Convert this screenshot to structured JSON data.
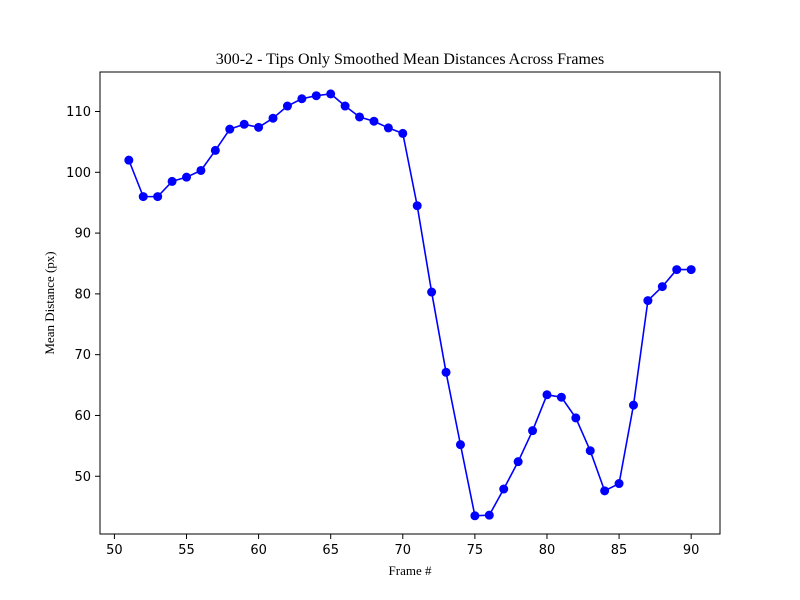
{
  "chart_data": {
    "type": "line",
    "title": "300-2 - Tips Only Smoothed Mean Distances Across Frames",
    "xlabel": "Frame #",
    "ylabel": "Mean Distance (px)",
    "xlim": [
      49,
      92
    ],
    "ylim": [
      40.5,
      116.5
    ],
    "xticks": [
      50,
      55,
      60,
      65,
      70,
      75,
      80,
      85,
      90
    ],
    "yticks": [
      50,
      60,
      70,
      80,
      90,
      100,
      110
    ],
    "grid": false,
    "legend": "none",
    "series": [
      {
        "color": "#0000ff",
        "marker": "circle",
        "x": [
          51,
          52,
          53,
          54,
          55,
          56,
          57,
          58,
          59,
          60,
          61,
          62,
          63,
          64,
          65,
          66,
          67,
          68,
          69,
          70,
          71,
          72,
          73,
          74,
          75,
          76,
          77,
          78,
          79,
          80,
          81,
          82,
          83,
          84,
          85,
          86,
          87,
          88,
          89,
          90
        ],
        "y": [
          102.0,
          96.0,
          96.0,
          98.5,
          99.2,
          100.3,
          103.6,
          107.1,
          107.9,
          107.4,
          108.9,
          110.9,
          112.1,
          112.6,
          112.9,
          110.9,
          109.1,
          108.4,
          107.3,
          106.4,
          94.5,
          80.3,
          67.1,
          55.2,
          43.5,
          43.6,
          47.9,
          52.4,
          57.5,
          63.4,
          63.0,
          59.6,
          54.2,
          47.6,
          48.8,
          61.7,
          78.9,
          81.2,
          84.0,
          84.0
        ]
      }
    ]
  }
}
